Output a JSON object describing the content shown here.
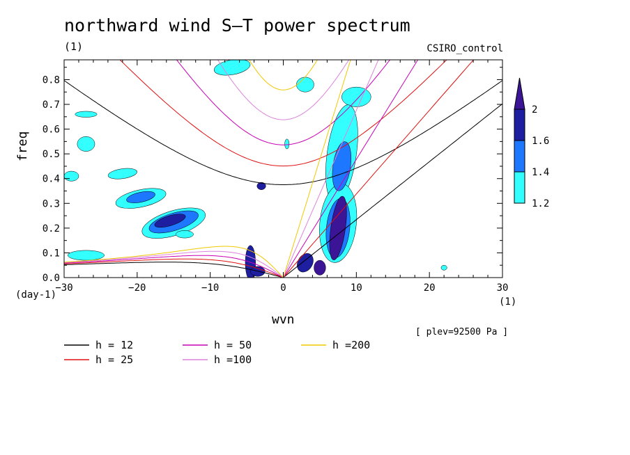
{
  "figure": {
    "title": "northward wind S–T power spectrum",
    "subtitle": "(1)",
    "model": "CSIRO_control",
    "plev": "[ plev=92500 Pa ]",
    "xunit": "(1)",
    "yunit": "(day-1)"
  },
  "chart_data": {
    "type": "heatmap",
    "xlabel": "wvn",
    "ylabel": "freq",
    "xlim": [
      -30,
      30
    ],
    "ylim": [
      0,
      0.88
    ],
    "xticks": [
      -30,
      -20,
      -10,
      0,
      10,
      20,
      30
    ],
    "yticks": [
      0.0,
      0.1,
      0.2,
      0.3,
      0.4,
      0.5,
      0.6,
      0.7,
      0.8
    ],
    "xtick_labels": [
      "−30",
      "−20",
      "−10",
      "0",
      "10",
      "20",
      "30"
    ],
    "ytick_labels": [
      "0.0",
      "0.1",
      "0.2",
      "0.3",
      "0.4",
      "0.5",
      "0.6",
      "0.7",
      "0.8"
    ],
    "colorbar": {
      "levels": [
        1.2,
        1.4,
        1.6,
        2
      ],
      "labels": [
        "1.2",
        "1.4",
        "1.6",
        "2"
      ],
      "colors": [
        "#33ffff",
        "#1e78ff",
        "#1e1ea0",
        "#3c1496"
      ]
    },
    "dispersion_curves": [
      {
        "name": "h = 12",
        "h": 12,
        "color": "#000000"
      },
      {
        "name": "h = 25",
        "h": 25,
        "color": "#e01010"
      },
      {
        "name": "h = 50",
        "h": 50,
        "color": "#c800b4"
      },
      {
        "name": "h =100",
        "h": 100,
        "color": "#dc82dc"
      },
      {
        "name": "h =200",
        "h": 200,
        "color": "#f0c800"
      }
    ],
    "contour_regions": [
      {
        "level": 1.2,
        "x": -15,
        "y": 0.22,
        "rx": 4.5,
        "ry": 0.05,
        "angle": -17
      },
      {
        "level": 1.4,
        "x": -15,
        "y": 0.225,
        "rx": 3.5,
        "ry": 0.035,
        "angle": -17
      },
      {
        "level": 1.6,
        "x": -15.5,
        "y": 0.23,
        "rx": 2.2,
        "ry": 0.02,
        "angle": -17
      },
      {
        "level": 1.2,
        "x": -19.5,
        "y": 0.32,
        "rx": 3.5,
        "ry": 0.035,
        "angle": -12
      },
      {
        "level": 1.4,
        "x": -19.5,
        "y": 0.325,
        "rx": 2.0,
        "ry": 0.02,
        "angle": -12
      },
      {
        "level": 1.2,
        "x": -27,
        "y": 0.54,
        "rx": 1.2,
        "ry": 0.03,
        "angle": 0
      },
      {
        "level": 1.2,
        "x": -22,
        "y": 0.42,
        "rx": 2.0,
        "ry": 0.02,
        "angle": -8
      },
      {
        "level": 1.2,
        "x": -29,
        "y": 0.41,
        "rx": 1.0,
        "ry": 0.02,
        "angle": 0
      },
      {
        "level": 1.2,
        "x": -27,
        "y": 0.09,
        "rx": 2.5,
        "ry": 0.02,
        "angle": 0
      },
      {
        "level": 1.2,
        "x": -13.5,
        "y": 0.175,
        "rx": 1.2,
        "ry": 0.015,
        "angle": 0
      },
      {
        "level": 1.2,
        "x": -27,
        "y": 0.66,
        "rx": 1.5,
        "ry": 0.012,
        "angle": 0
      },
      {
        "level": 1.2,
        "x": -7,
        "y": 0.85,
        "rx": 2.5,
        "ry": 0.03,
        "angle": -10
      },
      {
        "level": 1.6,
        "x": -3,
        "y": 0.37,
        "rx": 0.6,
        "ry": 0.015,
        "angle": 0
      },
      {
        "level": 1.6,
        "x": -4.5,
        "y": 0.06,
        "rx": 0.7,
        "ry": 0.07,
        "angle": 0
      },
      {
        "level": 1.6,
        "x": -3.5,
        "y": 0.025,
        "rx": 1.0,
        "ry": 0.02,
        "angle": 0
      },
      {
        "level": 1.2,
        "x": 3,
        "y": 0.78,
        "rx": 1.2,
        "ry": 0.03,
        "angle": 0
      },
      {
        "level": 1.2,
        "x": 10,
        "y": 0.73,
        "rx": 2.0,
        "ry": 0.04,
        "angle": 0
      },
      {
        "level": 1.2,
        "x": 8,
        "y": 0.5,
        "rx": 2.0,
        "ry": 0.2,
        "angle": 8
      },
      {
        "level": 1.4,
        "x": 8,
        "y": 0.45,
        "rx": 1.2,
        "ry": 0.1,
        "angle": 8
      },
      {
        "level": 1.2,
        "x": 7.5,
        "y": 0.22,
        "rx": 2.5,
        "ry": 0.16,
        "angle": 6
      },
      {
        "level": 1.4,
        "x": 7.5,
        "y": 0.2,
        "rx": 1.6,
        "ry": 0.12,
        "angle": 6
      },
      {
        "level": 2,
        "x": 7.5,
        "y": 0.2,
        "rx": 1.0,
        "ry": 0.13,
        "angle": 8
      },
      {
        "level": 2,
        "x": 5,
        "y": 0.04,
        "rx": 0.8,
        "ry": 0.03,
        "angle": 0
      },
      {
        "level": 1.6,
        "x": 3,
        "y": 0.06,
        "rx": 1.0,
        "ry": 0.04,
        "angle": 30
      },
      {
        "level": 1.2,
        "x": 0.5,
        "y": 0.54,
        "rx": 0.3,
        "ry": 0.02,
        "angle": 0
      },
      {
        "level": 1.2,
        "x": 22,
        "y": 0.04,
        "rx": 0.4,
        "ry": 0.01,
        "angle": 0
      }
    ]
  },
  "legend": [
    {
      "label": "h = 12",
      "color": "#000000"
    },
    {
      "label": "h = 25",
      "color": "#e01010"
    },
    {
      "label": "h = 50",
      "color": "#c800b4"
    },
    {
      "label": "h =100",
      "color": "#dc82dc"
    },
    {
      "label": "h =200",
      "color": "#f0c800"
    }
  ]
}
